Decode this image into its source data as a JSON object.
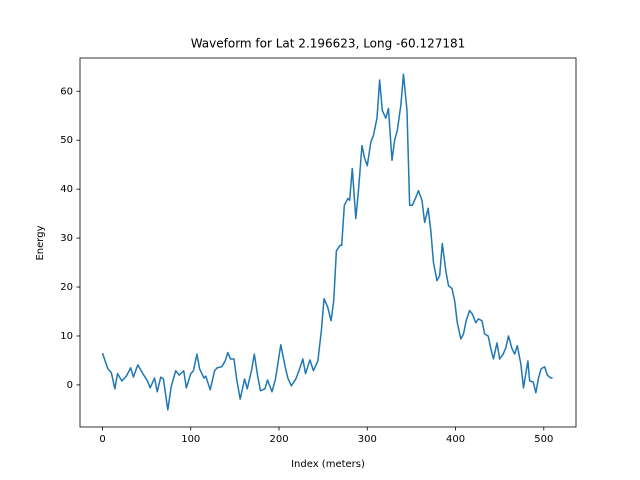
{
  "chart_data": {
    "type": "line",
    "title": "Waveform for Lat 2.196623, Long -60.127181",
    "x_label": "Index (meters)",
    "y_label": "Energy",
    "color": "#1f77b4",
    "xlim": [
      -25.5,
      536.5
    ],
    "ylim": [
      -8.6,
      66.8
    ],
    "xticks": [
      0,
      100,
      200,
      300,
      400,
      500
    ],
    "yticks": [
      0,
      10,
      20,
      30,
      40,
      50,
      60
    ],
    "x": [
      0,
      6,
      10,
      14,
      17,
      22,
      27,
      32,
      35,
      40,
      45,
      51,
      54,
      59,
      62,
      66,
      69,
      74,
      78,
      83,
      87,
      92,
      95,
      100,
      103,
      107,
      110,
      115,
      117,
      122,
      127,
      130,
      135,
      139,
      142,
      145,
      149,
      152,
      156,
      161,
      164,
      169,
      172,
      176,
      179,
      184,
      187,
      192,
      196,
      202,
      207,
      210,
      214,
      219,
      223,
      227,
      230,
      235,
      239,
      244,
      248,
      251,
      255,
      259,
      262,
      265,
      269,
      271,
      274,
      278,
      280,
      283,
      287,
      290,
      294,
      297,
      300,
      304,
      307,
      311,
      314,
      317,
      321,
      324,
      328,
      331,
      334,
      338,
      341,
      345,
      348,
      351,
      355,
      358,
      362,
      365,
      369,
      372,
      375,
      379,
      382,
      385,
      389,
      392,
      396,
      399,
      402,
      406,
      409,
      412,
      416,
      419,
      423,
      426,
      430,
      433,
      437,
      440,
      443,
      447,
      450,
      454,
      457,
      460,
      464,
      467,
      470,
      474,
      477,
      482,
      484,
      488,
      491,
      494,
      497,
      501,
      504,
      508,
      510
    ],
    "values": [
      6.5,
      3.3,
      2.5,
      -0.8,
      2.3,
      0.8,
      1.8,
      3.5,
      1.6,
      4.1,
      2.5,
      0.8,
      -0.6,
      1.4,
      -1.4,
      1.6,
      1.2,
      -5.1,
      -0.2,
      2.9,
      2.0,
      2.9,
      -0.6,
      2.3,
      2.9,
      6.3,
      3.3,
      1.4,
      1.8,
      -1.0,
      2.9,
      3.5,
      3.7,
      4.9,
      6.6,
      5.3,
      5.3,
      1.2,
      -2.9,
      1.2,
      -0.8,
      3.1,
      6.3,
      1.6,
      -1.2,
      -0.8,
      1.0,
      -1.4,
      1.2,
      8.2,
      3.7,
      1.4,
      -0.2,
      1.2,
      3.1,
      5.3,
      2.3,
      5.1,
      2.9,
      4.9,
      11.1,
      17.6,
      16.0,
      13.1,
      17.2,
      27.4,
      28.5,
      28.5,
      36.7,
      38.1,
      37.7,
      44.2,
      34.0,
      39.7,
      48.9,
      46.3,
      44.8,
      49.6,
      51.0,
      54.5,
      62.3,
      56.1,
      54.5,
      56.5,
      45.9,
      50.0,
      52.0,
      57.1,
      63.5,
      56.1,
      36.7,
      36.7,
      38.3,
      39.7,
      37.7,
      33.2,
      36.1,
      31.5,
      25.0,
      21.3,
      22.3,
      28.9,
      23.3,
      20.3,
      19.7,
      17.2,
      12.7,
      9.4,
      10.4,
      13.1,
      15.2,
      14.5,
      12.7,
      13.5,
      13.1,
      10.4,
      10.0,
      7.4,
      5.3,
      8.6,
      5.3,
      6.3,
      7.6,
      10.0,
      7.4,
      6.3,
      8.0,
      4.3,
      -0.6,
      4.9,
      0.8,
      0.6,
      -1.6,
      1.4,
      3.3,
      3.7,
      2.0,
      1.4,
      1.4
    ]
  }
}
